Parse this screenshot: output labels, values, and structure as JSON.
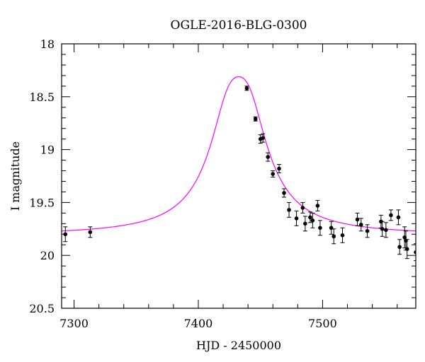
{
  "chart_data": {
    "type": "scatter",
    "title": "OGLE-2016-BLG-0300",
    "xlabel": "HJD - 2450000",
    "ylabel": "I magnitude",
    "xlim": [
      7290,
      7575
    ],
    "ylim": [
      20.5,
      18.0
    ],
    "y_inverted": true,
    "x_ticks": [
      7300,
      7400,
      7500
    ],
    "x_tick_labels": [
      "7300",
      "7400",
      "7500"
    ],
    "y_ticks": [
      18,
      18.5,
      19,
      19.5,
      20,
      20.5
    ],
    "y_tick_labels": [
      "18",
      "18.5",
      "19",
      "19.5",
      "20",
      "20.5"
    ],
    "grid": false,
    "model": {
      "color": "#ff00ff",
      "t0": 7432.5,
      "peak_mag": 18.31,
      "baseline_mag": 19.81,
      "width": 17
    },
    "points": [
      {
        "x": 7293,
        "y": 19.8,
        "err": 0.07
      },
      {
        "x": 7313,
        "y": 19.78,
        "err": 0.05
      },
      {
        "x": 7439,
        "y": 18.42,
        "err": 0.02
      },
      {
        "x": 7446,
        "y": 18.71,
        "err": 0.02
      },
      {
        "x": 7450,
        "y": 18.9,
        "err": 0.04
      },
      {
        "x": 7452,
        "y": 18.89,
        "err": 0.04
      },
      {
        "x": 7456,
        "y": 19.07,
        "err": 0.04
      },
      {
        "x": 7460,
        "y": 19.23,
        "err": 0.03
      },
      {
        "x": 7465,
        "y": 19.18,
        "err": 0.04
      },
      {
        "x": 7469,
        "y": 19.41,
        "err": 0.04
      },
      {
        "x": 7473,
        "y": 19.57,
        "err": 0.07
      },
      {
        "x": 7479,
        "y": 19.65,
        "err": 0.07
      },
      {
        "x": 7484,
        "y": 19.55,
        "err": 0.05
      },
      {
        "x": 7486,
        "y": 19.7,
        "err": 0.07
      },
      {
        "x": 7490,
        "y": 19.64,
        "err": 0.05
      },
      {
        "x": 7492,
        "y": 19.67,
        "err": 0.07
      },
      {
        "x": 7496,
        "y": 19.53,
        "err": 0.05
      },
      {
        "x": 7498,
        "y": 19.74,
        "err": 0.07
      },
      {
        "x": 7507,
        "y": 19.74,
        "err": 0.06
      },
      {
        "x": 7509,
        "y": 19.82,
        "err": 0.07
      },
      {
        "x": 7516,
        "y": 19.81,
        "err": 0.07
      },
      {
        "x": 7528,
        "y": 19.66,
        "err": 0.06
      },
      {
        "x": 7531,
        "y": 19.71,
        "err": 0.06
      },
      {
        "x": 7536,
        "y": 19.77,
        "err": 0.06
      },
      {
        "x": 7547,
        "y": 19.68,
        "err": 0.06
      },
      {
        "x": 7548,
        "y": 19.75,
        "err": 0.07
      },
      {
        "x": 7551,
        "y": 19.76,
        "err": 0.07
      },
      {
        "x": 7555,
        "y": 19.62,
        "err": 0.05
      },
      {
        "x": 7561,
        "y": 19.64,
        "err": 0.07
      },
      {
        "x": 7562,
        "y": 19.92,
        "err": 0.07
      },
      {
        "x": 7566,
        "y": 19.83,
        "err": 0.1
      },
      {
        "x": 7567,
        "y": 19.86,
        "err": 0.09
      },
      {
        "x": 7568,
        "y": 19.94,
        "err": 0.09
      },
      {
        "x": 7575,
        "y": 19.97,
        "err": 0.08
      }
    ]
  }
}
